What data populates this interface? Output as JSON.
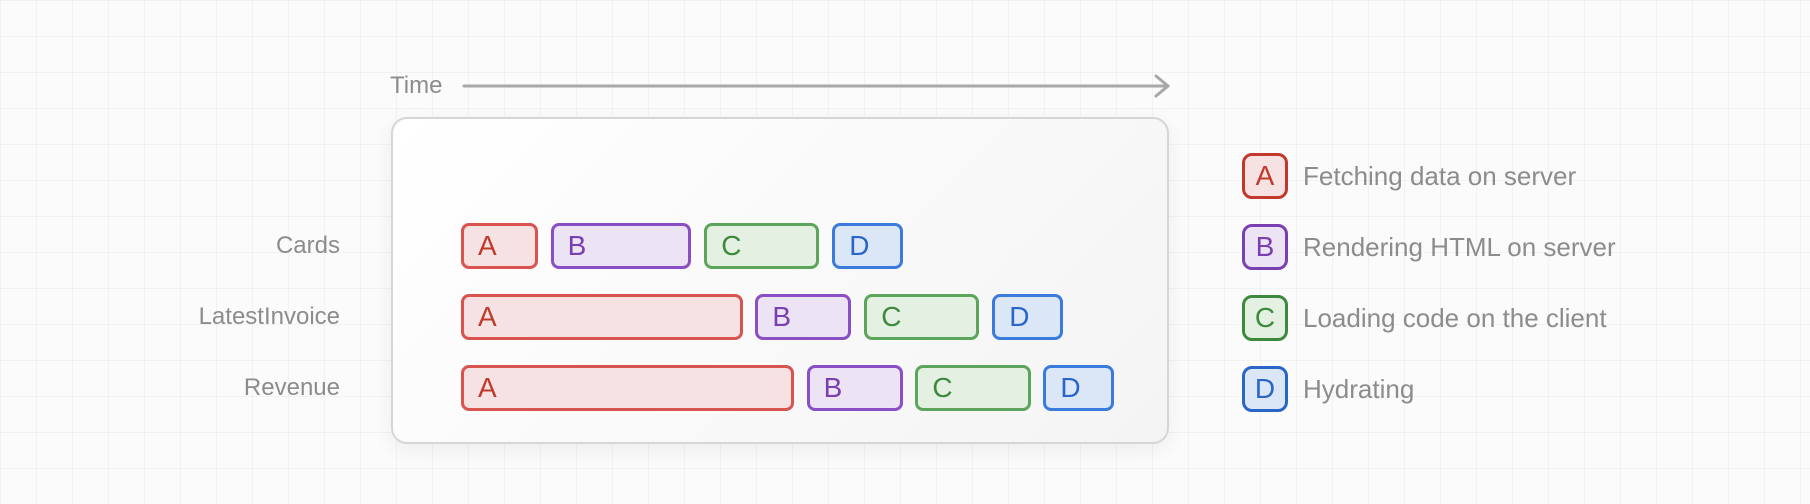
{
  "axis": {
    "label": "Time"
  },
  "rows": [
    {
      "label": "Cards",
      "segments": [
        {
          "code": "A",
          "start": 0,
          "duration": 1.2
        },
        {
          "code": "B",
          "start": 1.4,
          "duration": 2.2
        },
        {
          "code": "C",
          "start": 3.8,
          "duration": 1.8
        },
        {
          "code": "D",
          "start": 5.8,
          "duration": 1.1
        }
      ]
    },
    {
      "label": "LatestInvoice",
      "segments": [
        {
          "code": "A",
          "start": 0,
          "duration": 4.4
        },
        {
          "code": "B",
          "start": 4.6,
          "duration": 1.5
        },
        {
          "code": "C",
          "start": 6.3,
          "duration": 1.8
        },
        {
          "code": "D",
          "start": 8.3,
          "duration": 1.1
        }
      ]
    },
    {
      "label": "Revenue",
      "segments": [
        {
          "code": "A",
          "start": 0,
          "duration": 5.2
        },
        {
          "code": "B",
          "start": 5.4,
          "duration": 1.5
        },
        {
          "code": "C",
          "start": 7.1,
          "duration": 1.8
        },
        {
          "code": "D",
          "start": 9.1,
          "duration": 1.1
        }
      ]
    }
  ],
  "legend": [
    {
      "code": "A",
      "text": "Fetching data on server"
    },
    {
      "code": "B",
      "text": "Rendering HTML on server"
    },
    {
      "code": "C",
      "text": "Loading code on the client"
    },
    {
      "code": "D",
      "text": "Hydrating"
    }
  ],
  "colors": {
    "A": "#d9534f",
    "B": "#8a4fc4",
    "C": "#5ba65a",
    "D": "#3a7bdc",
    "axis": "#a8a8a8"
  }
}
